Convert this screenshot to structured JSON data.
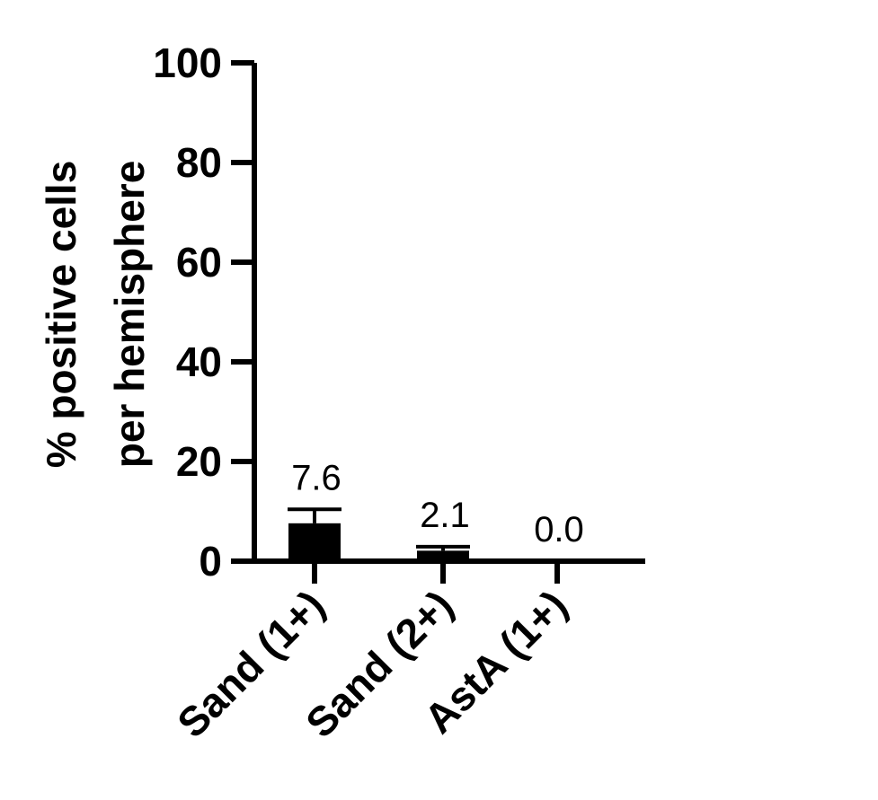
{
  "chart_data": {
    "type": "bar",
    "title": "",
    "xlabel": "",
    "ylabel_lines": [
      "% positive cells",
      "per hemisphere"
    ],
    "categories": [
      "Sand (1+)",
      "Sand (2+)",
      "AstA (1+)"
    ],
    "values": [
      7.6,
      2.1,
      0.0
    ],
    "value_labels": [
      "7.6",
      "2.1",
      "0.0"
    ],
    "error_upper": [
      10.4,
      2.9,
      0.0
    ],
    "ylim": [
      0,
      100
    ],
    "yticks": [
      0,
      20,
      40,
      60,
      80,
      100
    ],
    "ytick_labels": [
      "0",
      "20",
      "40",
      "60",
      "80",
      "100"
    ],
    "grid": false,
    "bar_color": "#000000"
  }
}
